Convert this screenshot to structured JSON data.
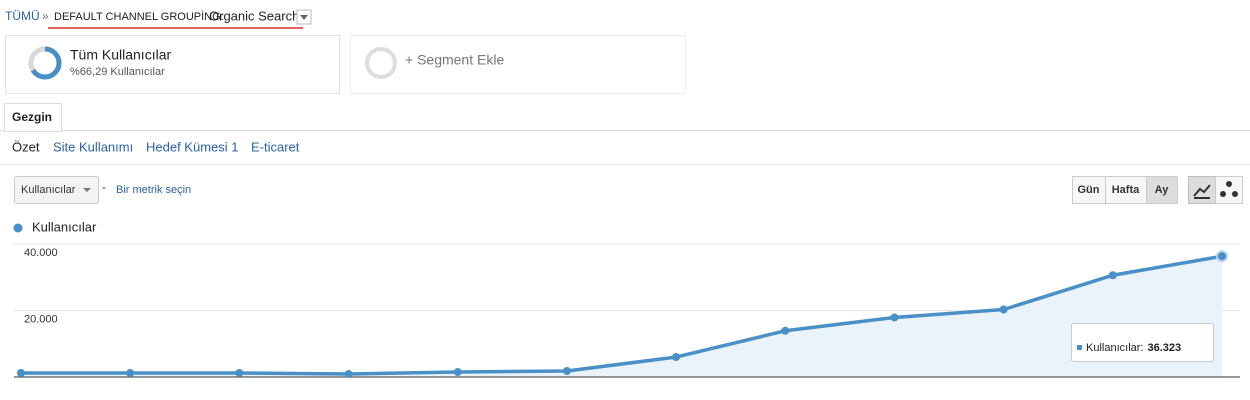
{
  "breadcrumb": {
    "root": "TÜMÜ",
    "separator": "»",
    "dimension": "DEFAULT CHANNEL GROUPİNG:",
    "value": "Organic Search"
  },
  "segments": [
    {
      "title": "Tüm Kullanıcılar",
      "subtitle": "%66,29 Kullanıcılar"
    },
    {
      "title": "+ Segment Ekle"
    }
  ],
  "tabs": [
    "Gezgin"
  ],
  "subnav": [
    "Özet",
    "Site Kullanımı",
    "Hedef Kümesi 1",
    "E-ticaret"
  ],
  "controls": {
    "metric": "Kullanıcılar",
    "separator": "-",
    "add_metric": "Bir metrik seçin",
    "periods": [
      "Gün",
      "Hafta",
      "Ay"
    ],
    "active_period": 2
  },
  "chart_data": {
    "type": "line",
    "series": [
      {
        "name": "Kullanıcılar",
        "color": "#4a90c8",
        "values": [
          1200,
          1200,
          1200,
          900,
          1500,
          1800,
          6000,
          13900,
          17900,
          20300,
          30600,
          36323
        ]
      }
    ],
    "ylim": [
      0,
      40000
    ],
    "yticks": [
      {
        "value": 20000,
        "label": "20.000"
      },
      {
        "value": 40000,
        "label": "40.000"
      }
    ],
    "grid": true,
    "tooltip": {
      "label": "Kullanıcılar:",
      "value": "36.323"
    }
  }
}
